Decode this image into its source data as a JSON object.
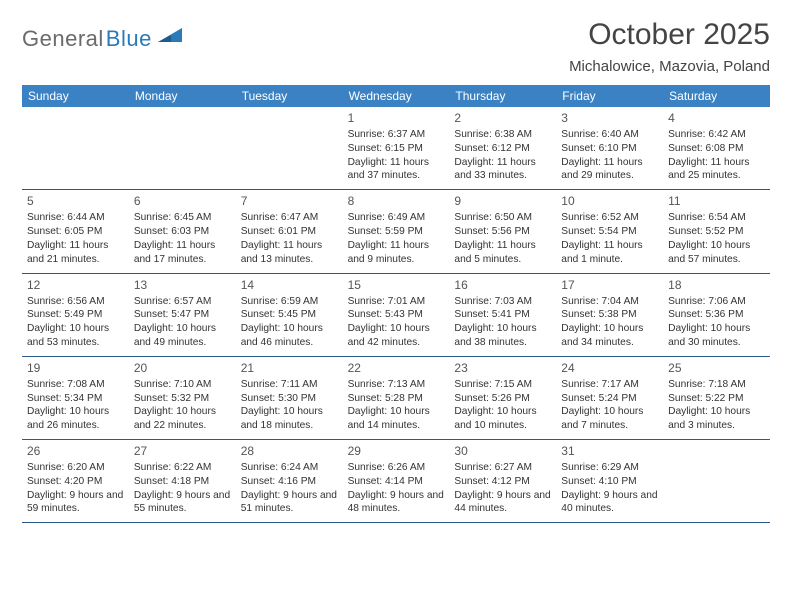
{
  "logo": {
    "text1": "General",
    "text2": "Blue"
  },
  "title": "October 2025",
  "location": "Michalowice, Mazovia, Poland",
  "colors": {
    "header_bg": "#3b82c4",
    "header_text": "#ffffff",
    "rule": "#2d5a8a",
    "text": "#333333",
    "logo_gray": "#6a6a6a",
    "logo_blue": "#2a7ab8"
  },
  "day_names": [
    "Sunday",
    "Monday",
    "Tuesday",
    "Wednesday",
    "Thursday",
    "Friday",
    "Saturday"
  ],
  "weeks": [
    [
      null,
      null,
      null,
      {
        "n": "1",
        "sr": "6:37 AM",
        "ss": "6:15 PM",
        "dl": "11 hours and 37 minutes."
      },
      {
        "n": "2",
        "sr": "6:38 AM",
        "ss": "6:12 PM",
        "dl": "11 hours and 33 minutes."
      },
      {
        "n": "3",
        "sr": "6:40 AM",
        "ss": "6:10 PM",
        "dl": "11 hours and 29 minutes."
      },
      {
        "n": "4",
        "sr": "6:42 AM",
        "ss": "6:08 PM",
        "dl": "11 hours and 25 minutes."
      }
    ],
    [
      {
        "n": "5",
        "sr": "6:44 AM",
        "ss": "6:05 PM",
        "dl": "11 hours and 21 minutes."
      },
      {
        "n": "6",
        "sr": "6:45 AM",
        "ss": "6:03 PM",
        "dl": "11 hours and 17 minutes."
      },
      {
        "n": "7",
        "sr": "6:47 AM",
        "ss": "6:01 PM",
        "dl": "11 hours and 13 minutes."
      },
      {
        "n": "8",
        "sr": "6:49 AM",
        "ss": "5:59 PM",
        "dl": "11 hours and 9 minutes."
      },
      {
        "n": "9",
        "sr": "6:50 AM",
        "ss": "5:56 PM",
        "dl": "11 hours and 5 minutes."
      },
      {
        "n": "10",
        "sr": "6:52 AM",
        "ss": "5:54 PM",
        "dl": "11 hours and 1 minute."
      },
      {
        "n": "11",
        "sr": "6:54 AM",
        "ss": "5:52 PM",
        "dl": "10 hours and 57 minutes."
      }
    ],
    [
      {
        "n": "12",
        "sr": "6:56 AM",
        "ss": "5:49 PM",
        "dl": "10 hours and 53 minutes."
      },
      {
        "n": "13",
        "sr": "6:57 AM",
        "ss": "5:47 PM",
        "dl": "10 hours and 49 minutes."
      },
      {
        "n": "14",
        "sr": "6:59 AM",
        "ss": "5:45 PM",
        "dl": "10 hours and 46 minutes."
      },
      {
        "n": "15",
        "sr": "7:01 AM",
        "ss": "5:43 PM",
        "dl": "10 hours and 42 minutes."
      },
      {
        "n": "16",
        "sr": "7:03 AM",
        "ss": "5:41 PM",
        "dl": "10 hours and 38 minutes."
      },
      {
        "n": "17",
        "sr": "7:04 AM",
        "ss": "5:38 PM",
        "dl": "10 hours and 34 minutes."
      },
      {
        "n": "18",
        "sr": "7:06 AM",
        "ss": "5:36 PM",
        "dl": "10 hours and 30 minutes."
      }
    ],
    [
      {
        "n": "19",
        "sr": "7:08 AM",
        "ss": "5:34 PM",
        "dl": "10 hours and 26 minutes."
      },
      {
        "n": "20",
        "sr": "7:10 AM",
        "ss": "5:32 PM",
        "dl": "10 hours and 22 minutes."
      },
      {
        "n": "21",
        "sr": "7:11 AM",
        "ss": "5:30 PM",
        "dl": "10 hours and 18 minutes."
      },
      {
        "n": "22",
        "sr": "7:13 AM",
        "ss": "5:28 PM",
        "dl": "10 hours and 14 minutes."
      },
      {
        "n": "23",
        "sr": "7:15 AM",
        "ss": "5:26 PM",
        "dl": "10 hours and 10 minutes."
      },
      {
        "n": "24",
        "sr": "7:17 AM",
        "ss": "5:24 PM",
        "dl": "10 hours and 7 minutes."
      },
      {
        "n": "25",
        "sr": "7:18 AM",
        "ss": "5:22 PM",
        "dl": "10 hours and 3 minutes."
      }
    ],
    [
      {
        "n": "26",
        "sr": "6:20 AM",
        "ss": "4:20 PM",
        "dl": "9 hours and 59 minutes."
      },
      {
        "n": "27",
        "sr": "6:22 AM",
        "ss": "4:18 PM",
        "dl": "9 hours and 55 minutes."
      },
      {
        "n": "28",
        "sr": "6:24 AM",
        "ss": "4:16 PM",
        "dl": "9 hours and 51 minutes."
      },
      {
        "n": "29",
        "sr": "6:26 AM",
        "ss": "4:14 PM",
        "dl": "9 hours and 48 minutes."
      },
      {
        "n": "30",
        "sr": "6:27 AM",
        "ss": "4:12 PM",
        "dl": "9 hours and 44 minutes."
      },
      {
        "n": "31",
        "sr": "6:29 AM",
        "ss": "4:10 PM",
        "dl": "9 hours and 40 minutes."
      },
      null
    ]
  ],
  "labels": {
    "sunrise": "Sunrise:",
    "sunset": "Sunset:",
    "daylight": "Daylight:"
  }
}
